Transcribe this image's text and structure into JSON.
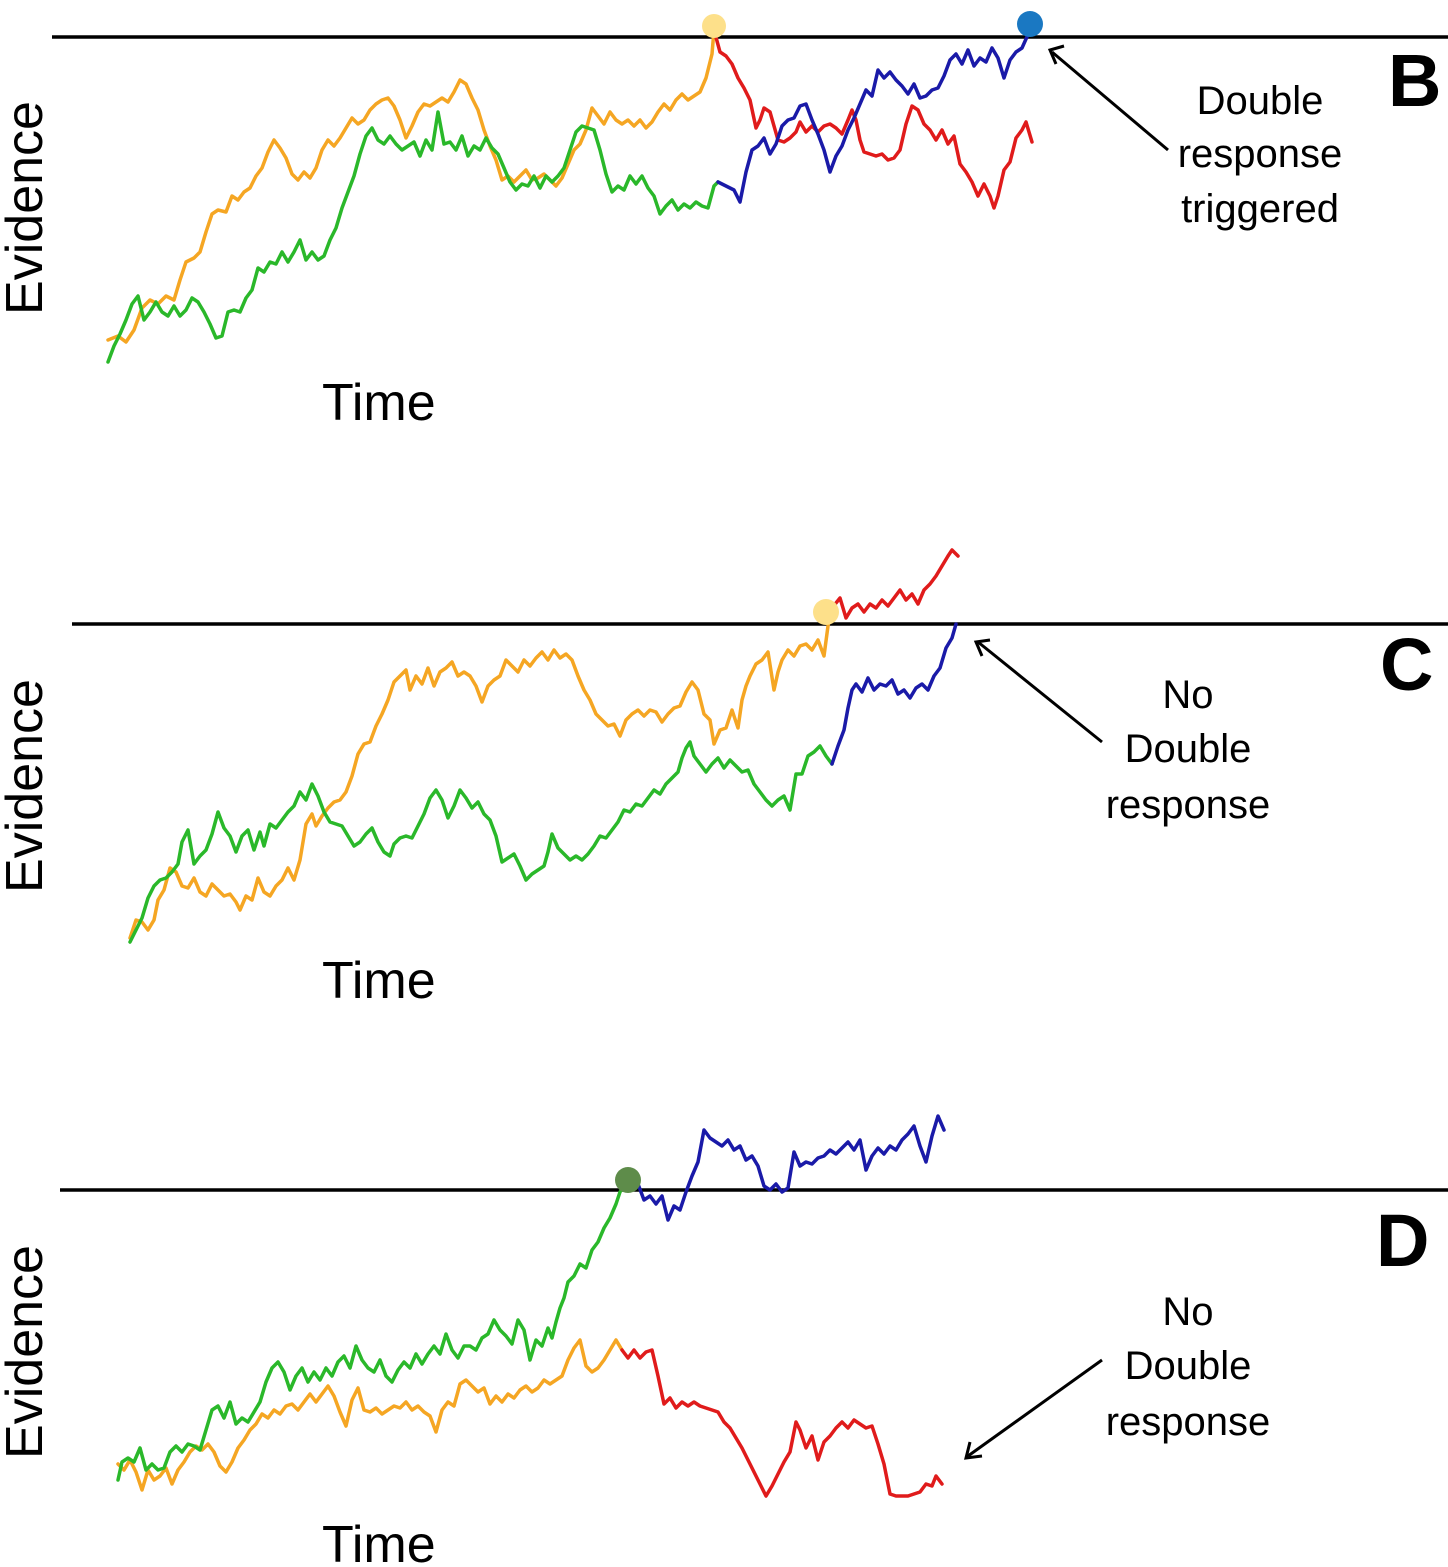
{
  "panels": [
    {
      "letter": "B",
      "y_label": "Evidence",
      "x_label": "Time",
      "annotation": [
        "Double",
        "response",
        "triggered"
      ]
    },
    {
      "letter": "C",
      "y_label": "Evidence",
      "x_label": "Time",
      "annotation": [
        "No",
        "Double",
        "response"
      ]
    },
    {
      "letter": "D",
      "y_label": "Evidence",
      "x_label": "Time",
      "annotation": [
        "No",
        "Double",
        "response"
      ]
    }
  ],
  "colors": {
    "orange": "#f5a623",
    "green": "#2ab82a",
    "red": "#e01b1b",
    "blue": "#1a1aa8",
    "marker_yellow": "#fde08a",
    "marker_blue": "#1a78c2",
    "marker_green": "#5e8c4a"
  }
}
